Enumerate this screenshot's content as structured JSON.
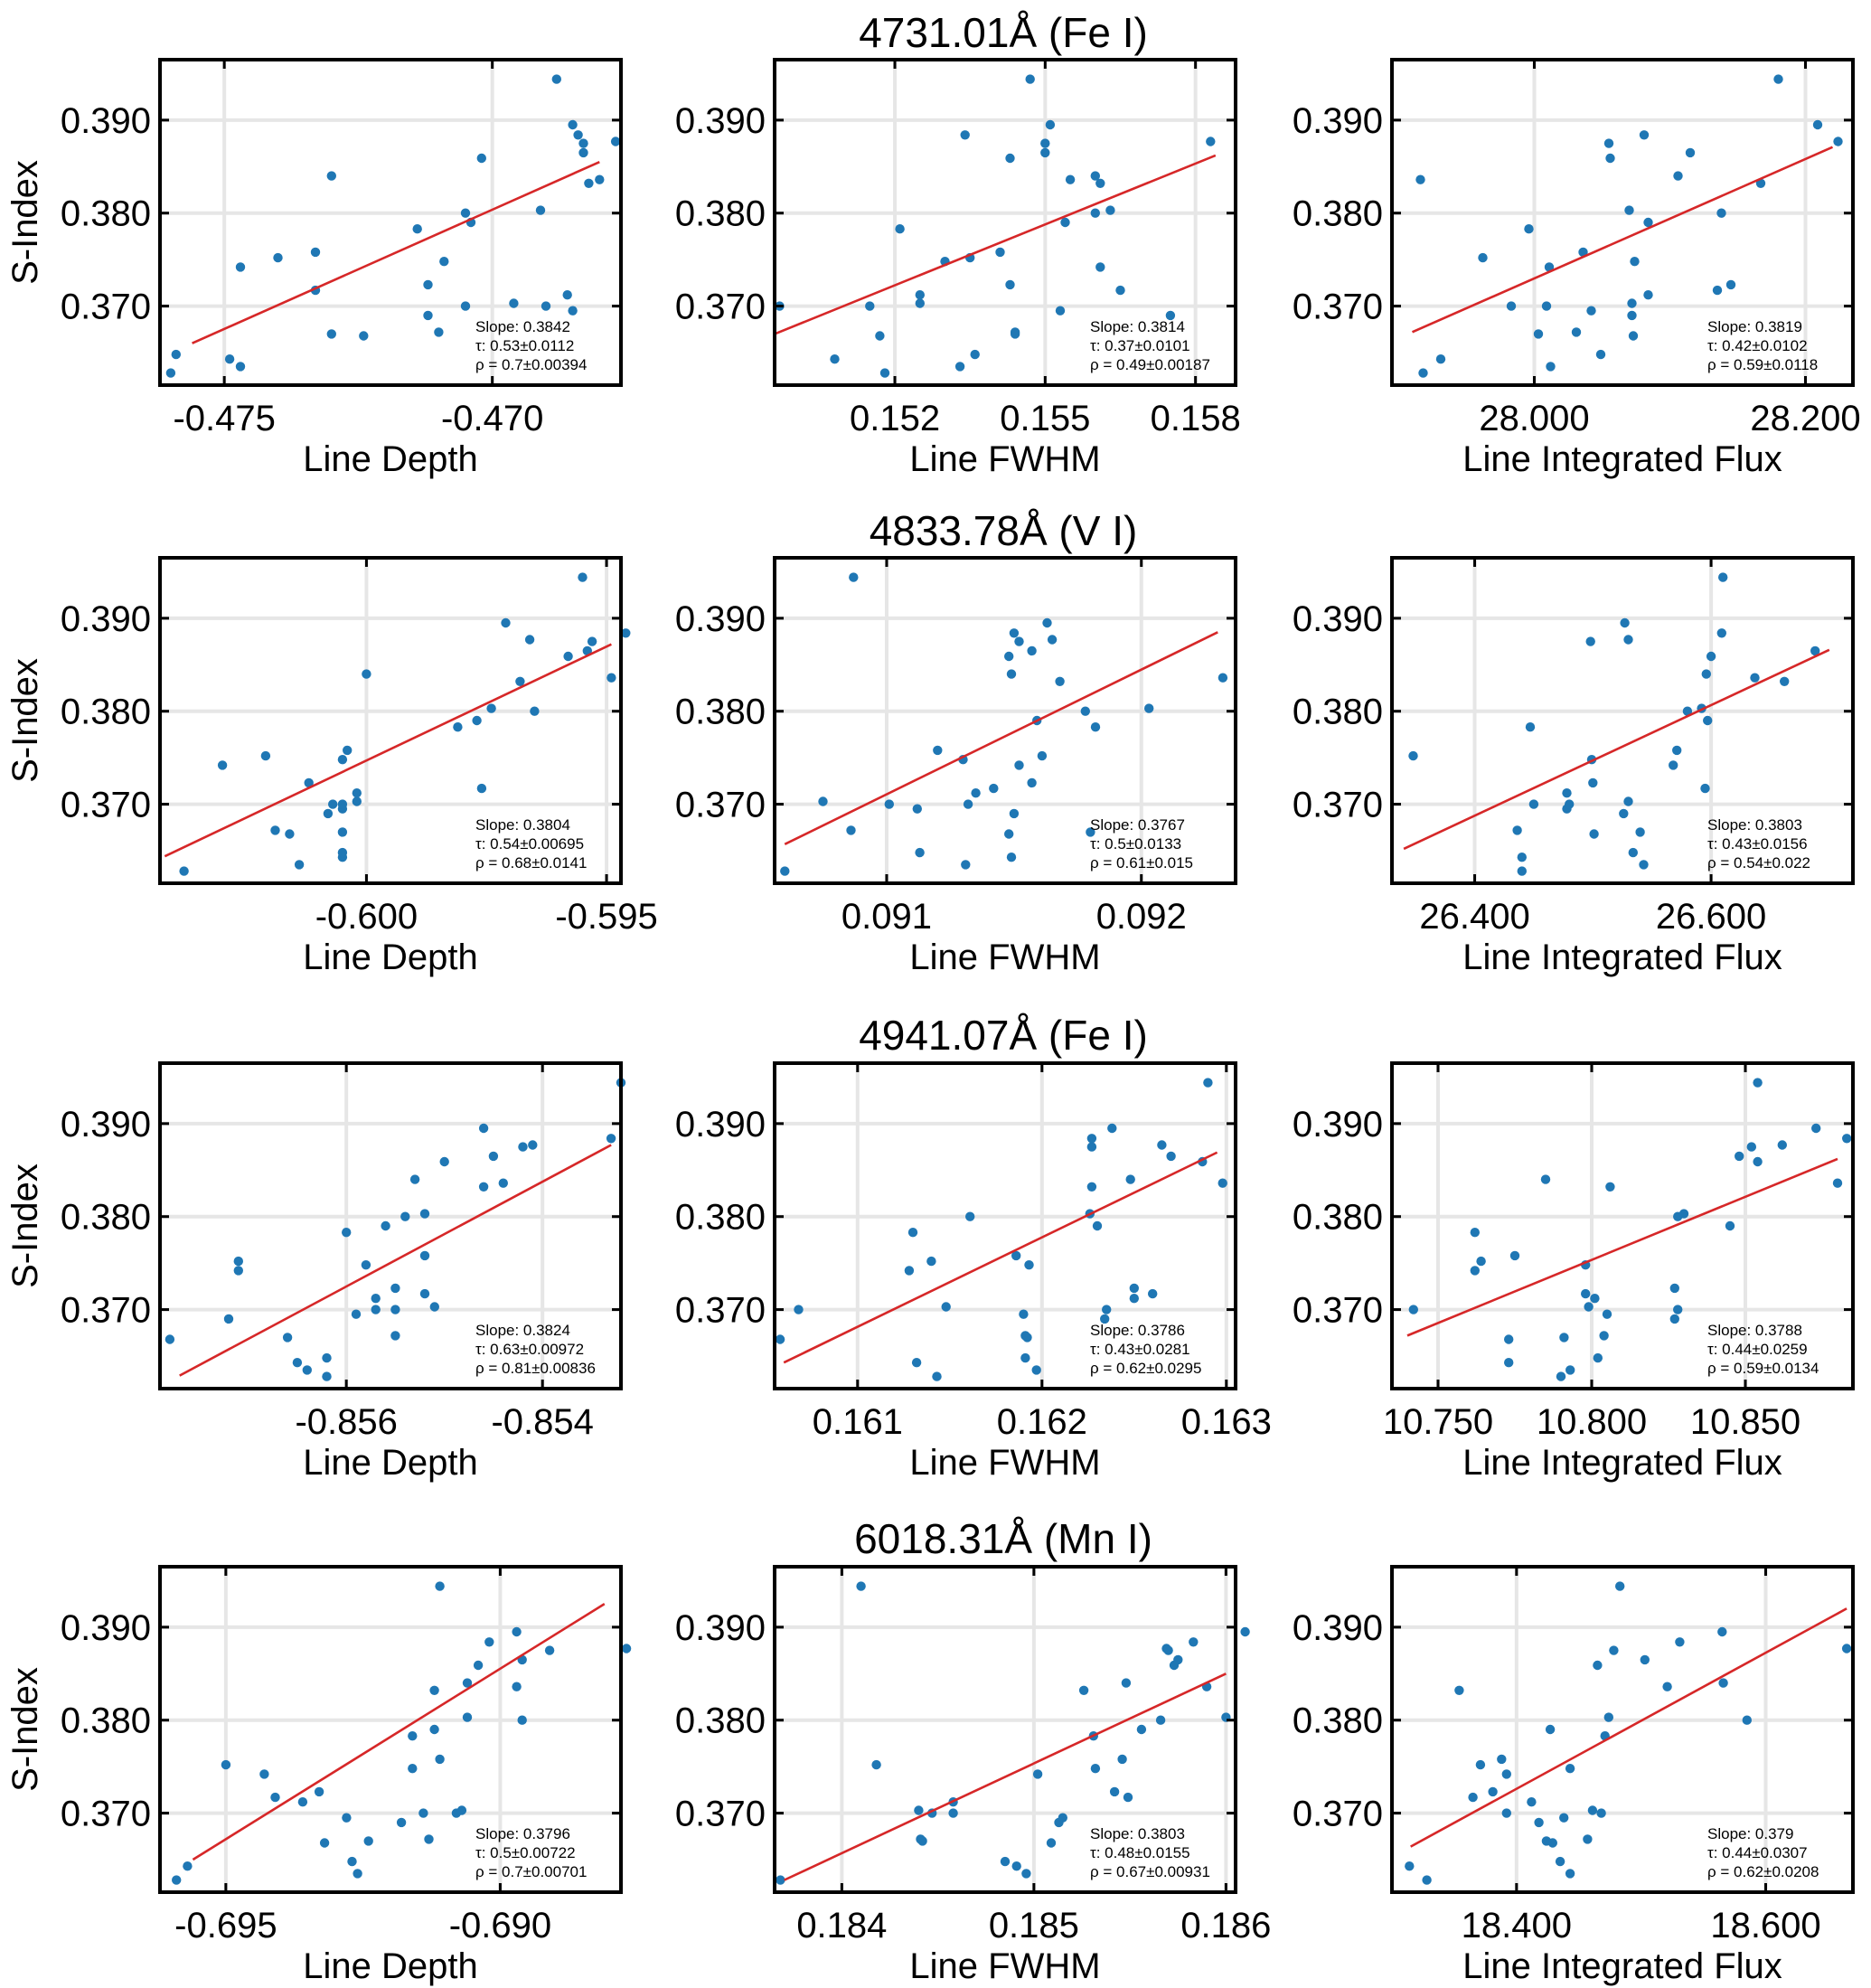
{
  "figure": {
    "y_axis_label": "S-Index",
    "rows": [
      {
        "title": "4731.01Å (Fe I)",
        "panels": [
          {
            "xlabel": "Line Depth",
            "xticks": [
              "-0.475",
              "-0.470"
            ],
            "slope": "Slope: 0.3842",
            "tau": "τ: 0.53±0.0112",
            "rho": "ρ = 0.7±0.00394"
          },
          {
            "xlabel": "Line FWHM",
            "xticks": [
              "0.152",
              "0.155",
              "0.158"
            ],
            "slope": "Slope: 0.3814",
            "tau": "τ: 0.37±0.0101",
            "rho": "ρ = 0.49±0.00187"
          },
          {
            "xlabel": "Line Integrated Flux",
            "xticks": [
              "28.000",
              "28.200"
            ],
            "slope": "Slope: 0.3819",
            "tau": "τ: 0.42±0.0102",
            "rho": "ρ = 0.59±0.0118"
          }
        ]
      },
      {
        "title": "4833.78Å (V I)",
        "panels": [
          {
            "xlabel": "Line Depth",
            "xticks": [
              "-0.600",
              "-0.595"
            ],
            "slope": "Slope: 0.3804",
            "tau": "τ: 0.54±0.00695",
            "rho": "ρ = 0.68±0.0141"
          },
          {
            "xlabel": "Line FWHM",
            "xticks": [
              "0.091",
              "0.092"
            ],
            "slope": "Slope: 0.3767",
            "tau": "τ: 0.5±0.0133",
            "rho": "ρ = 0.61±0.015"
          },
          {
            "xlabel": "Line Integrated Flux",
            "xticks": [
              "26.400",
              "26.600"
            ],
            "slope": "Slope: 0.3803",
            "tau": "τ: 0.43±0.0156",
            "rho": "ρ = 0.54±0.022"
          }
        ]
      },
      {
        "title": "4941.07Å (Fe I)",
        "panels": [
          {
            "xlabel": "Line Depth",
            "xticks": [
              "-0.856",
              "-0.854"
            ],
            "slope": "Slope: 0.3824",
            "tau": "τ: 0.63±0.00972",
            "rho": "ρ = 0.81±0.00836"
          },
          {
            "xlabel": "Line FWHM",
            "xticks": [
              "0.161",
              "0.162",
              "0.163"
            ],
            "slope": "Slope: 0.3786",
            "tau": "τ: 0.43±0.0281",
            "rho": "ρ = 0.62±0.0295"
          },
          {
            "xlabel": "Line Integrated Flux",
            "xticks": [
              "10.750",
              "10.800",
              "10.850"
            ],
            "slope": "Slope: 0.3788",
            "tau": "τ: 0.44±0.0259",
            "rho": "ρ = 0.59±0.0134"
          }
        ]
      },
      {
        "title": "6018.31Å (Mn I)",
        "panels": [
          {
            "xlabel": "Line Depth",
            "xticks": [
              "-0.695",
              "-0.690"
            ],
            "slope": "Slope: 0.3796",
            "tau": "τ: 0.5±0.00722",
            "rho": "ρ = 0.7±0.00701"
          },
          {
            "xlabel": "Line FWHM",
            "xticks": [
              "0.184",
              "0.185",
              "0.186"
            ],
            "slope": "Slope: 0.3803",
            "tau": "τ: 0.48±0.0155",
            "rho": "ρ = 0.67±0.00931"
          },
          {
            "xlabel": "Line Integrated Flux",
            "xticks": [
              "18.400",
              "18.600"
            ],
            "slope": "Slope: 0.379",
            "tau": "τ: 0.44±0.0307",
            "rho": "ρ = 0.62±0.0208"
          }
        ]
      }
    ]
  },
  "chart_data": {
    "type": "scatter",
    "title": "",
    "ylabel": "S-Index",
    "ylim": [
      0.3615,
      0.3965
    ],
    "yticks": [
      0.37,
      0.38,
      0.39
    ],
    "grid": true,
    "colors": {
      "points": "#1f77b4",
      "fit": "#d62728"
    },
    "s_index": [
      0.3628,
      0.3635,
      0.3643,
      0.3648,
      0.3668,
      0.367,
      0.3672,
      0.369,
      0.3695,
      0.37,
      0.37,
      0.3703,
      0.3712,
      0.3717,
      0.3723,
      0.3742,
      0.3748,
      0.3752,
      0.3758,
      0.3783,
      0.379,
      0.38,
      0.3803,
      0.3832,
      0.3836,
      0.384,
      0.3859,
      0.3865,
      0.3875,
      0.3877,
      0.3884,
      0.3895,
      0.3944
    ],
    "panels": [
      {
        "line": "4731.01Å (Fe I)",
        "xlabel": "Line Depth",
        "xlim": [
          -0.4762,
          -0.4676
        ],
        "xticks": [
          -0.475,
          -0.47
        ],
        "fit": {
          "x": [
            -0.4756,
            -0.468
          ],
          "y": [
            0.366,
            0.3855
          ]
        },
        "x": [
          -0.476,
          -0.4747,
          -0.4749,
          -0.4759,
          -0.4724,
          -0.473,
          -0.471,
          -0.4712,
          -0.4685,
          -0.469,
          -0.4705,
          -0.4696,
          -0.4686,
          -0.4733,
          -0.4712,
          -0.4747,
          -0.4709,
          -0.474,
          -0.4733,
          -0.4714,
          -0.4704,
          -0.4705,
          -0.4691,
          -0.4682,
          -0.468,
          -0.473,
          -0.4702,
          -0.4683,
          -0.4683,
          -0.4677,
          -0.4684,
          -0.4685,
          -0.4688
        ]
      },
      {
        "line": "4731.01Å (Fe I)",
        "xlabel": "Line FWHM",
        "xlim": [
          0.1496,
          0.1588
        ],
        "xticks": [
          0.152,
          0.155,
          0.158
        ],
        "fit": {
          "x": [
            0.1496,
            0.1584
          ],
          "y": [
            0.367,
            0.3862
          ]
        },
        "x": [
          0.1518,
          0.1533,
          0.1508,
          0.1536,
          0.1517,
          0.1544,
          0.1544,
          0.1575,
          0.1553,
          0.1497,
          0.1515,
          0.1525,
          0.1525,
          0.1565,
          0.1543,
          0.1561,
          0.153,
          0.1535,
          0.1541,
          0.1521,
          0.1554,
          0.156,
          0.1563,
          0.1561,
          0.1555,
          0.156,
          0.1543,
          0.155,
          0.155,
          0.1583,
          0.1534,
          0.1551,
          0.1547
        ]
      },
      {
        "line": "4731.01Å (Fe I)",
        "xlabel": "Line Integrated Flux",
        "xlim": [
          27.895,
          28.235
        ],
        "xticks": [
          28.0,
          28.2
        ],
        "fit": {
          "x": [
            27.91,
            28.22
          ],
          "y": [
            0.3672,
            0.3871
          ]
        },
        "x": [
          27.918,
          28.012,
          27.931,
          28.049,
          28.073,
          28.003,
          28.031,
          28.072,
          28.042,
          28.009,
          27.983,
          28.072,
          28.084,
          28.135,
          28.145,
          28.011,
          28.074,
          27.962,
          28.036,
          27.996,
          28.084,
          28.138,
          28.07,
          28.167,
          27.916,
          28.106,
          28.056,
          28.115,
          28.055,
          28.224,
          28.081,
          28.209,
          28.18
        ]
      },
      {
        "line": "4833.78Å (V I)",
        "xlabel": "Line Depth",
        "xlim": [
          -0.6043,
          -0.5947
        ],
        "xticks": [
          -0.6,
          -0.595
        ],
        "fit": {
          "x": [
            -0.6042,
            -0.5949
          ],
          "y": [
            0.3644,
            0.3872
          ]
        },
        "x": [
          -0.6038,
          -0.6014,
          -0.6005,
          -0.6005,
          -0.6016,
          -0.6005,
          -0.6019,
          -0.6008,
          -0.6005,
          -0.6005,
          -0.6007,
          -0.6002,
          -0.6002,
          -0.5976,
          -0.6012,
          -0.603,
          -0.6005,
          -0.6021,
          -0.6004,
          -0.5981,
          -0.5977,
          -0.5965,
          -0.5974,
          -0.5968,
          -0.5949,
          -0.6,
          -0.5958,
          -0.5954,
          -0.5953,
          -0.5966,
          -0.5946,
          -0.5971,
          -0.5955
        ]
      },
      {
        "line": "4833.78Å (V I)",
        "xlabel": "Line FWHM",
        "xlim": [
          0.09056,
          0.09237
        ],
        "xticks": [
          0.091,
          0.092
        ],
        "fit": {
          "x": [
            0.0906,
            0.0923
          ],
          "y": [
            0.3657,
            0.3885
          ]
        },
        "x": [
          0.0906,
          0.09131,
          0.09149,
          0.09113,
          0.09148,
          0.0918,
          0.09086,
          0.0915,
          0.09112,
          0.09101,
          0.09132,
          0.09075,
          0.09135,
          0.09142,
          0.09157,
          0.09152,
          0.0913,
          0.09161,
          0.0912,
          0.09182,
          0.09159,
          0.09178,
          0.09203,
          0.09168,
          0.09232,
          0.09149,
          0.09148,
          0.09157,
          0.09152,
          0.09165,
          0.0915,
          0.09163,
          0.09087
        ]
      },
      {
        "line": "4833.78Å (V I)",
        "xlabel": "Line Integrated Flux",
        "xlim": [
          26.33,
          26.72
        ],
        "xticks": [
          26.4,
          26.6
        ],
        "fit": {
          "x": [
            26.34,
            26.7
          ],
          "y": [
            0.3652,
            0.3866
          ]
        },
        "x": [
          26.44,
          26.543,
          26.44,
          26.534,
          26.501,
          26.54,
          26.436,
          26.526,
          26.478,
          26.48,
          26.45,
          26.53,
          26.478,
          26.595,
          26.5,
          26.568,
          26.499,
          26.348,
          26.571,
          26.447,
          26.597,
          26.58,
          26.592,
          26.662,
          26.637,
          26.596,
          26.6,
          26.688,
          26.498,
          26.53,
          26.609,
          26.527,
          26.61
        ]
      },
      {
        "line": "4941.07Å (Fe I)",
        "xlabel": "Line Depth",
        "xlim": [
          -0.8579,
          -0.8532
        ],
        "xticks": [
          -0.856,
          -0.854
        ],
        "fit": {
          "x": [
            -0.8577,
            -0.8533
          ],
          "y": [
            0.3629,
            0.3877
          ]
        },
        "x": [
          -0.8562,
          -0.8564,
          -0.8565,
          -0.8562,
          -0.8578,
          -0.8566,
          -0.8555,
          -0.8572,
          -0.8559,
          -0.8557,
          -0.8555,
          -0.8551,
          -0.8557,
          -0.8552,
          -0.8555,
          -0.8571,
          -0.8558,
          -0.8571,
          -0.8552,
          -0.856,
          -0.8556,
          -0.8554,
          -0.8552,
          -0.8546,
          -0.8544,
          -0.8553,
          -0.855,
          -0.8545,
          -0.8542,
          -0.8541,
          -0.8533,
          -0.8546,
          -0.8532
        ]
      },
      {
        "line": "4941.07Å (Fe I)",
        "xlabel": "Line FWHM",
        "xlim": [
          0.16055,
          0.16305
        ],
        "xticks": [
          0.161,
          0.162,
          0.163
        ],
        "fit": {
          "x": [
            0.1606,
            0.16295
          ],
          "y": [
            0.3643,
            0.3869
          ]
        },
        "x": [
          0.16143,
          0.16197,
          0.16132,
          0.16191,
          0.16058,
          0.16192,
          0.16191,
          0.16234,
          0.1619,
          0.16068,
          0.16235,
          0.16148,
          0.1625,
          0.1626,
          0.1625,
          0.16128,
          0.16193,
          0.1614,
          0.16186,
          0.1613,
          0.1623,
          0.16161,
          0.16226,
          0.16227,
          0.16298,
          0.16248,
          0.16287,
          0.1627,
          0.16227,
          0.16265,
          0.16227,
          0.16238,
          0.1629
        ]
      },
      {
        "line": "4941.07Å (Fe I)",
        "xlabel": "Line Integrated Flux",
        "xlim": [
          10.735,
          10.885
        ],
        "xticks": [
          10.75,
          10.8,
          10.85
        ],
        "fit": {
          "x": [
            10.74,
            10.88
          ],
          "y": [
            0.3672,
            0.3862
          ]
        },
        "x": [
          10.79,
          10.793,
          10.773,
          10.802,
          10.773,
          10.791,
          10.804,
          10.827,
          10.805,
          10.742,
          10.828,
          10.799,
          10.801,
          10.798,
          10.827,
          10.762,
          10.798,
          10.764,
          10.775,
          10.762,
          10.845,
          10.828,
          10.83,
          10.806,
          10.88,
          10.785,
          10.854,
          10.848,
          10.852,
          10.862,
          10.883,
          10.873,
          10.854
        ]
      },
      {
        "line": "6018.31Å (Mn I)",
        "xlabel": "Line Depth",
        "xlim": [
          -0.6962,
          -0.6878
        ],
        "xticks": [
          -0.695,
          -0.69
        ],
        "fit": {
          "x": [
            -0.6956,
            -0.6881
          ],
          "y": [
            0.365,
            0.3925
          ]
        },
        "x": [
          -0.6959,
          -0.6926,
          -0.6957,
          -0.6927,
          -0.6932,
          -0.6924,
          -0.6913,
          -0.6918,
          -0.6928,
          -0.6914,
          -0.6908,
          -0.6907,
          -0.6936,
          -0.6941,
          -0.6933,
          -0.6943,
          -0.6916,
          -0.695,
          -0.6911,
          -0.6916,
          -0.6912,
          -0.6896,
          -0.6906,
          -0.6912,
          -0.6897,
          -0.6906,
          -0.6904,
          -0.6896,
          -0.6891,
          -0.6877,
          -0.6902,
          -0.6897,
          -0.6911
        ]
      },
      {
        "line": "6018.31Å (Mn I)",
        "xlabel": "Line FWHM",
        "xlim": [
          0.18365,
          0.18605
        ],
        "xticks": [
          0.184,
          0.185,
          0.186
        ],
        "fit": {
          "x": [
            0.1837,
            0.186
          ],
          "y": [
            0.3628,
            0.385
          ]
        },
        "x": [
          0.18368,
          0.18496,
          0.18491,
          0.18485,
          0.18509,
          0.18442,
          0.18441,
          0.18513,
          0.18515,
          0.18447,
          0.18458,
          0.1844,
          0.18458,
          0.18549,
          0.18542,
          0.18502,
          0.18532,
          0.18418,
          0.18546,
          0.18531,
          0.18556,
          0.18566,
          0.186,
          0.18526,
          0.1859,
          0.18548,
          0.18573,
          0.18575,
          0.1857,
          0.18569,
          0.18583,
          0.1861,
          0.1841
        ]
      },
      {
        "line": "6018.31Å (Mn I)",
        "xlabel": "Line Integrated Flux",
        "xlim": [
          18.3,
          18.67
        ],
        "xticks": [
          18.4,
          18.6
        ],
        "fit": {
          "x": [
            18.315,
            18.665
          ],
          "y": [
            0.3664,
            0.392
          ]
        },
        "x": [
          18.328,
          18.443,
          18.314,
          18.435,
          18.429,
          18.424,
          18.457,
          18.418,
          18.438,
          18.392,
          18.468,
          18.461,
          18.412,
          18.365,
          18.381,
          18.392,
          18.443,
          18.371,
          18.388,
          18.471,
          18.427,
          18.585,
          18.474,
          18.354,
          18.521,
          18.566,
          18.465,
          18.503,
          18.478,
          18.665,
          18.531,
          18.565,
          18.483
        ]
      }
    ]
  }
}
